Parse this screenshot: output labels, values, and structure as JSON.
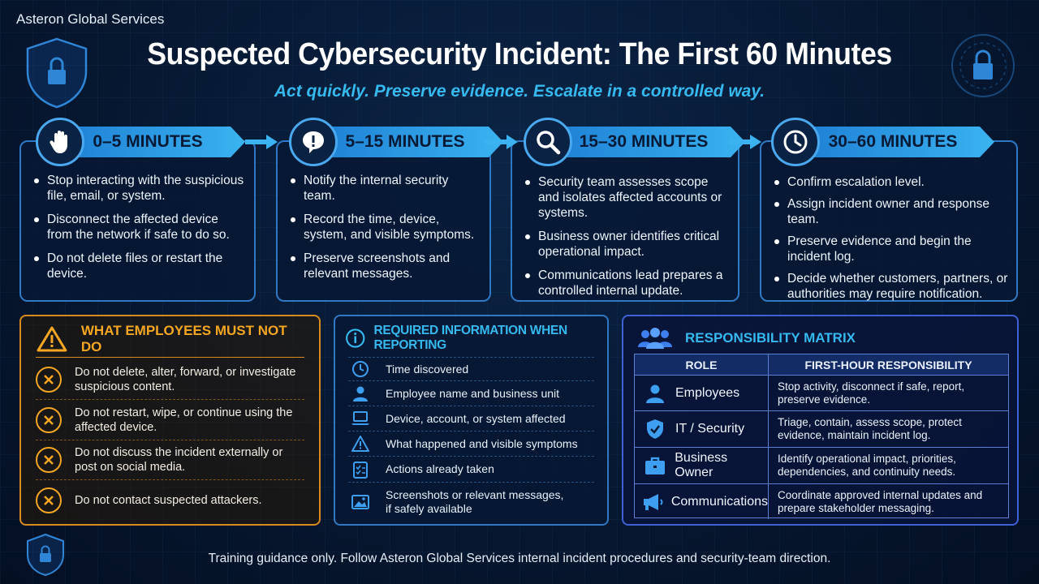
{
  "brand": "Asteron Global Services",
  "title": "Suspected Cybersecurity Incident: The First 60 Minutes",
  "subtitle": "Act quickly. Preserve evidence. Escalate in a controlled way.",
  "phases": [
    {
      "label": "0–5 MINUTES",
      "icon": "hand-stop-icon",
      "items": [
        "Stop interacting with the suspicious file, email, or system.",
        "Disconnect the affected device from the network if safe to do so.",
        "Do not delete files or restart the device."
      ]
    },
    {
      "label": "5–15 MINUTES",
      "icon": "alert-bubble-icon",
      "items": [
        "Notify the internal security team.",
        "Record the time, device, system, and visible symptoms.",
        "Preserve screenshots and relevant messages."
      ]
    },
    {
      "label": "15–30 MINUTES",
      "icon": "magnifier-icon",
      "items": [
        "Security team assesses scope and isolates affected accounts or systems.",
        "Business owner identifies critical operational impact.",
        "Communications lead prepares a controlled internal update."
      ]
    },
    {
      "label": "30–60 MINUTES",
      "icon": "clock-icon",
      "items": [
        "Confirm escalation level.",
        "Assign incident owner and response team.",
        "Preserve evidence and begin the incident log.",
        "Decide whether customers, partners, or authorities may require notification."
      ]
    }
  ],
  "must_not": {
    "heading": "WHAT EMPLOYEES MUST NOT DO",
    "items": [
      "Do not delete, alter, forward, or investigate suspicious content.",
      "Do not restart, wipe, or continue using the affected device.",
      "Do not discuss the incident externally or post on social media.",
      "Do not contact suspected attackers."
    ]
  },
  "required_info": {
    "heading": "REQUIRED INFORMATION WHEN REPORTING",
    "items": [
      {
        "icon": "clock-icon",
        "text": "Time discovered"
      },
      {
        "icon": "person-icon",
        "text": "Employee name and business unit"
      },
      {
        "icon": "laptop-icon",
        "text": "Device, account, or system affected"
      },
      {
        "icon": "warning-icon",
        "text": "What happened and visible symptoms"
      },
      {
        "icon": "checklist-icon",
        "text": "Actions already taken"
      },
      {
        "icon": "image-icon",
        "text": "Screenshots or relevant messages, if safely available"
      }
    ]
  },
  "responsibility": {
    "heading": "RESPONSIBILITY MATRIX",
    "col_role": "ROLE",
    "col_resp": "FIRST-HOUR RESPONSIBILITY",
    "rows": [
      {
        "icon": "person-icon",
        "role": "Employees",
        "resp": "Stop activity, disconnect if safe, report, preserve evidence."
      },
      {
        "icon": "shield-icon",
        "role": "IT / Security",
        "resp": "Triage, contain, assess scope, protect evidence, maintain incident log."
      },
      {
        "icon": "briefcase-icon",
        "role": "Business Owner",
        "resp": "Identify operational impact, priorities, dependencies, and continuity needs."
      },
      {
        "icon": "megaphone-icon",
        "role": "Communications",
        "resp": "Coordinate approved internal updates and prepare stakeholder messaging."
      }
    ]
  },
  "footer": "Training guidance only. Follow Asteron Global Services internal incident procedures and security-team direction.",
  "colors": {
    "accent_blue": "#35b9ee",
    "warning_orange": "#f5a623",
    "background": "#071a35"
  }
}
